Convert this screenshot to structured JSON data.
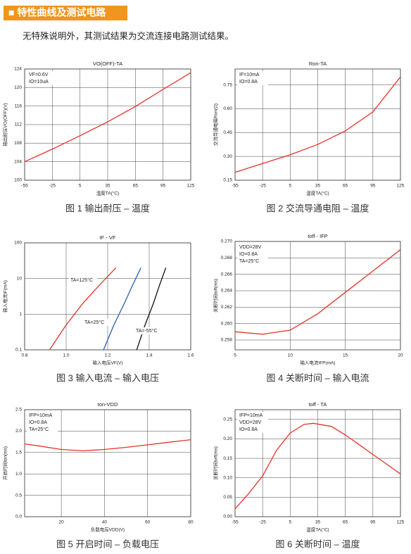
{
  "header": {
    "title": "■ 特性曲线及测试电路"
  },
  "intro": "无特殊说明外，其测试结果为交流连接电路测试结果。",
  "chart_data": [
    {
      "type": "line",
      "title": "VO(OFF)-TA",
      "caption": "图 1 输出耐压 – 温度",
      "x_label": "温度TA(°C)",
      "y_label": "输出耐压VO(OFF)(V)",
      "annotations": [
        "VF=0.6V",
        "IO=10uA"
      ],
      "grid": true,
      "xlim": [
        -55,
        125
      ],
      "xticks": [
        -55,
        -25,
        5,
        35,
        65,
        95,
        125
      ],
      "ylim": [
        100,
        124
      ],
      "yticks": [
        100,
        104,
        108,
        112,
        116,
        120,
        124
      ],
      "series": [
        {
          "color": "#e8312a",
          "x": [
            -55,
            -25,
            5,
            35,
            65,
            95,
            125
          ],
          "values": [
            104,
            106.7,
            109.6,
            112.6,
            115.9,
            119.6,
            123.2
          ]
        }
      ]
    },
    {
      "type": "line",
      "title": "Ron-TA",
      "caption": "图 2 交流导通电阻 – 温度",
      "x_label": "温度TA(°C)",
      "y_label": "交流导通电阻Ron(Ω)",
      "annotations": [
        "IF=10mA",
        "IO=0.8A"
      ],
      "grid": true,
      "xlim": [
        -55,
        125
      ],
      "xticks": [
        -55,
        -25,
        5,
        35,
        65,
        95,
        125
      ],
      "ylim": [
        0.15,
        0.85
      ],
      "yticks": [
        0.15,
        {
          "value": 0.3,
          "label": "0.30"
        },
        0.45,
        {
          "value": 0.6,
          "label": "0.60"
        },
        0.75
      ],
      "series": [
        {
          "color": "#e8312a",
          "x": [
            -55,
            -25,
            5,
            35,
            65,
            95,
            125
          ],
          "values": [
            0.2,
            0.255,
            0.31,
            0.375,
            0.46,
            0.58,
            0.8
          ]
        }
      ]
    },
    {
      "type": "line",
      "title": "IF - VF",
      "caption": "图 3 输入电流 – 输入电压",
      "x_label": "输入电压VF(V)",
      "y_label": "输入电流IF(mA)",
      "grid": true,
      "log_y": true,
      "xlim": [
        0.8,
        1.6
      ],
      "xticks": [
        0.8,
        {
          "value": 1,
          "label": "1.0"
        },
        1.2,
        1.4,
        1.6
      ],
      "ylim": [
        0.1,
        100
      ],
      "yticks": [
        0.1,
        1,
        10,
        100
      ],
      "series": [
        {
          "name": "TA=125°C",
          "color": "#e8312a",
          "x": [
            0.92,
            1.0,
            1.08,
            1.16,
            1.24
          ],
          "values": [
            0.1,
            0.5,
            2,
            6.5,
            20
          ]
        },
        {
          "name": "TA=25°C",
          "color": "#2a5db0",
          "x": [
            1.18,
            1.23,
            1.28,
            1.32,
            1.36
          ],
          "values": [
            0.1,
            0.5,
            2,
            6.5,
            20
          ]
        },
        {
          "name": "TA=-55°C",
          "color": "#111111",
          "x": [
            1.34,
            1.38,
            1.42,
            1.45,
            1.48
          ],
          "values": [
            0.1,
            0.5,
            2,
            6.5,
            20
          ]
        }
      ]
    },
    {
      "type": "line",
      "title": "toff - IFP",
      "caption": "图 4 关断时间 – 输入电流",
      "x_label": "输入电流IFP(mA)",
      "y_label": "关断时间toff(ms)",
      "annotations": [
        "VDD=28V",
        "IO=0.8A",
        "TA=25°C"
      ],
      "grid": true,
      "xlim": [
        5,
        20
      ],
      "xticks": [
        5,
        10,
        15,
        20
      ],
      "ylim": [
        0.2568,
        0.27
      ],
      "yticks": [
        0.258,
        {
          "value": 0.26,
          "label": "0.260"
        },
        0.262,
        0.264,
        0.266,
        0.268,
        {
          "value": 0.27,
          "label": "0.270"
        }
      ],
      "series": [
        {
          "color": "#e8312a",
          "x": [
            5,
            7.5,
            10,
            12.5,
            15,
            17.5,
            20
          ],
          "values": [
            0.259,
            0.2587,
            0.2592,
            0.2612,
            0.2638,
            0.2664,
            0.269
          ]
        }
      ]
    },
    {
      "type": "line",
      "title": "ton-VDD",
      "caption": "图 5 开启时间 – 负载电压",
      "x_label": "负载电压VDD(V)",
      "y_label": "开启时间ton(ms)",
      "annotations": [
        "IFP=10mA",
        "IO=0.8A",
        "TA=25°C"
      ],
      "grid": true,
      "xlim": [
        3,
        80
      ],
      "xticks": [
        20,
        40,
        60,
        80
      ],
      "ylim": [
        0,
        2.5
      ],
      "yticks": [
        {
          "value": 0,
          "label": "0.0"
        },
        0.5,
        {
          "value": 1,
          "label": "1.0"
        },
        1.5,
        {
          "value": 2,
          "label": "2.0"
        },
        2.5
      ],
      "series": [
        {
          "color": "#e8312a",
          "x": [
            3,
            10,
            20,
            30,
            40,
            50,
            60,
            70,
            80
          ],
          "values": [
            1.7,
            1.65,
            1.57,
            1.54,
            1.57,
            1.62,
            1.68,
            1.74,
            1.8
          ]
        }
      ]
    },
    {
      "type": "line",
      "title": "toff - TA",
      "caption": "图 6 关断时间 – 温度",
      "x_label": "温度TA(°C)",
      "y_label": "关断时间toff(ms)",
      "annotations": [
        "IFP=10mA",
        "VDD=28V",
        "IO=0.8A"
      ],
      "grid": true,
      "xlim": [
        -55,
        125
      ],
      "xticks": [
        -55,
        -25,
        5,
        35,
        65,
        95,
        125
      ],
      "ylim": [
        0,
        0.275
      ],
      "yticks": [
        {
          "value": 0,
          "label": "0.00"
        },
        0.05,
        {
          "value": 0.1,
          "label": "0.10"
        },
        0.15,
        {
          "value": 0.2,
          "label": "0.20"
        },
        0.25
      ],
      "series": [
        {
          "color": "#e8312a",
          "x": [
            -55,
            -40,
            -25,
            -10,
            5,
            20,
            30,
            50,
            65,
            80,
            95,
            110,
            125
          ],
          "values": [
            0.02,
            0.06,
            0.105,
            0.17,
            0.215,
            0.237,
            0.24,
            0.232,
            0.21,
            0.185,
            0.16,
            0.135,
            0.11
          ]
        }
      ]
    }
  ]
}
